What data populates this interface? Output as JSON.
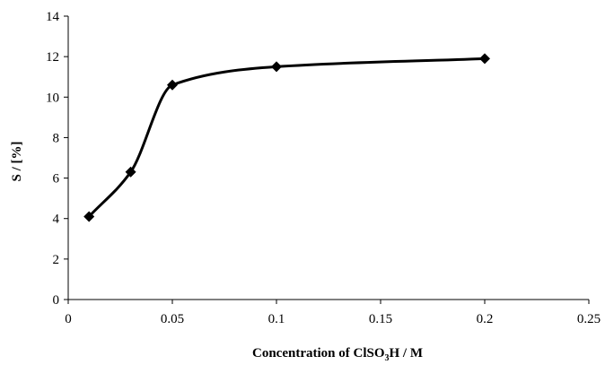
{
  "chart_data": {
    "type": "line",
    "title": "",
    "xlabel": {
      "prefix": "Concentration of ClSO",
      "subscript": "3",
      "suffix": "H / M"
    },
    "ylabel": "S / [%]",
    "xlim": [
      0,
      0.25
    ],
    "ylim": [
      0,
      14
    ],
    "x_ticks": [
      0,
      0.05,
      0.1,
      0.15,
      0.2,
      0.25
    ],
    "x_tick_labels": [
      "0",
      "0.05",
      "0.1",
      "0.15",
      "0.2",
      "0.25"
    ],
    "y_ticks": [
      0,
      2,
      4,
      6,
      8,
      10,
      12,
      14
    ],
    "y_tick_labels": [
      "0",
      "2",
      "4",
      "6",
      "8",
      "10",
      "12",
      "14"
    ],
    "grid": false,
    "smooth": true,
    "marker": "diamond",
    "series": [
      {
        "x": [
          0.01,
          0.03,
          0.05,
          0.1,
          0.2
        ],
        "y": [
          4.1,
          6.3,
          10.6,
          11.5,
          11.9
        ]
      }
    ],
    "color": "#000000"
  }
}
